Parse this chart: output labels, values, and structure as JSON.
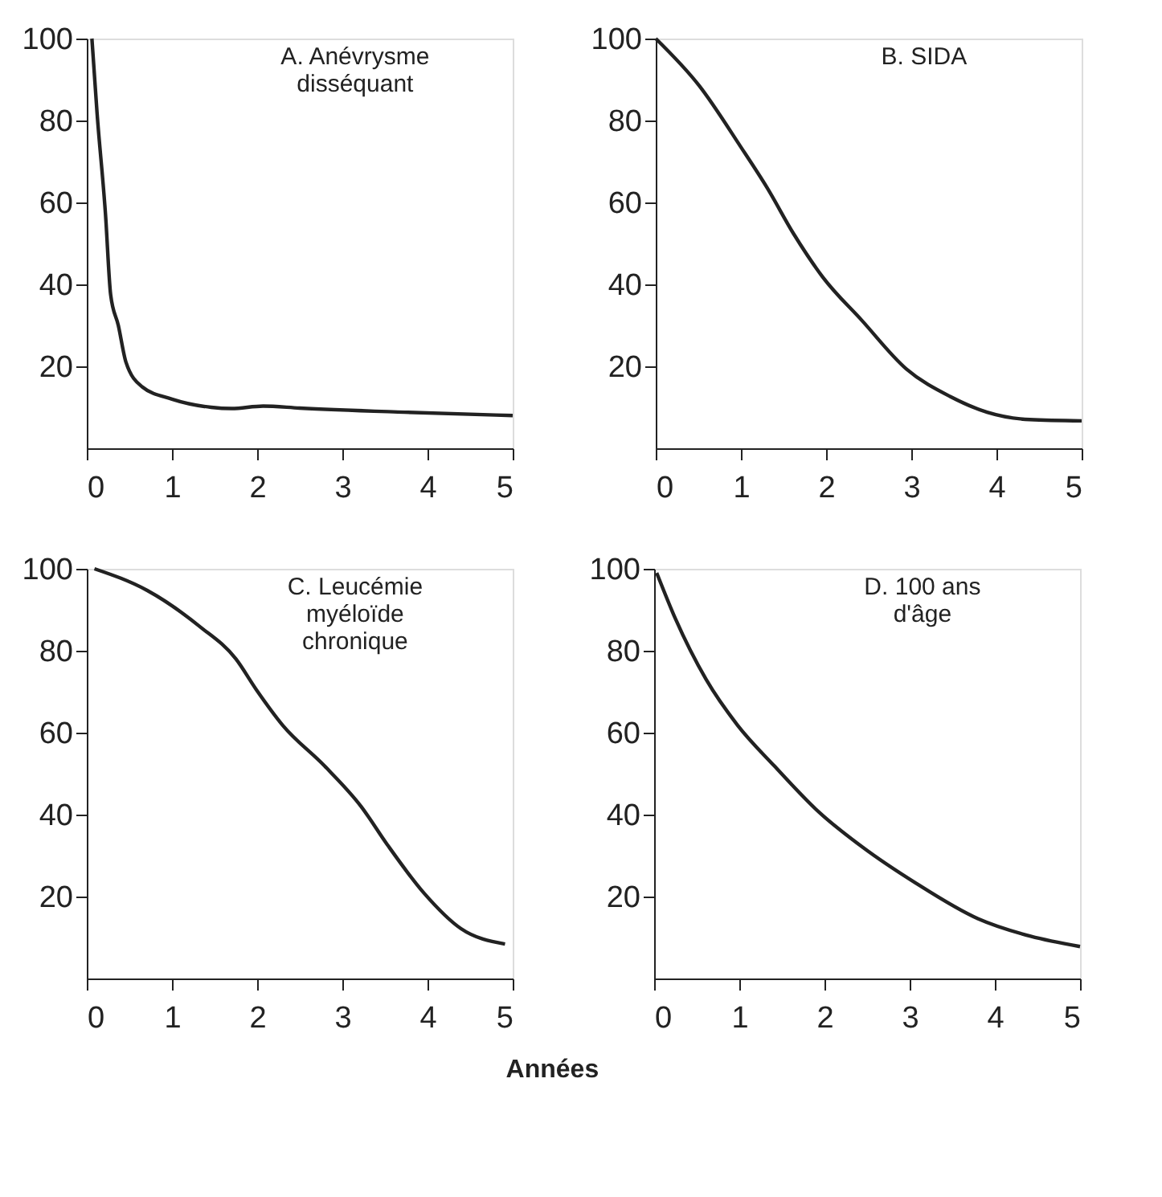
{
  "chart_data": [
    {
      "type": "line",
      "title": "A. Anévrysme disséquant",
      "x": [
        0.06,
        0.12,
        0.22,
        0.28,
        0.37,
        0.46,
        0.65,
        1.0,
        1.46,
        1.7,
        2.07,
        2.5,
        3.73,
        5.0
      ],
      "values": [
        100,
        82,
        57,
        37.5,
        30,
        21,
        15,
        12,
        10,
        9.7,
        10.3,
        9.8,
        8.8,
        8
      ],
      "color": "#222222",
      "xlim": [
        0,
        5
      ],
      "xticks": [
        0,
        1,
        2,
        3,
        4,
        5
      ],
      "ylim": [
        0,
        100
      ],
      "yticks": [
        20,
        40,
        60,
        80,
        100
      ],
      "grid": false
    },
    {
      "type": "line",
      "title": "B. SIDA",
      "x": [
        0,
        0.51,
        1.0,
        1.31,
        1.62,
        1.96,
        2.42,
        2.94,
        3.46,
        3.89,
        4.39,
        5.0
      ],
      "values": [
        100,
        88.5,
        73.5,
        63.5,
        52.3,
        41.8,
        31.2,
        19.4,
        12.6,
        8.8,
        7,
        6.7
      ],
      "color": "#222222",
      "xlim": [
        0,
        5
      ],
      "xticks": [
        0,
        1,
        2,
        3,
        4,
        5
      ],
      "ylim": [
        0,
        100
      ],
      "yticks": [
        20,
        40,
        60,
        80,
        100
      ],
      "grid": false
    },
    {
      "type": "line",
      "title": "C. Leucémie myéloïde chronique",
      "xlabel": "Années",
      "x": [
        0.09,
        0.71,
        1.32,
        1.75,
        1.99,
        2.3,
        2.79,
        3.22,
        3.53,
        3.96,
        4.39,
        4.91
      ],
      "values": [
        100,
        94.7,
        86,
        78,
        70.5,
        61.8,
        51.9,
        42,
        32.6,
        20.8,
        12.2,
        8.4
      ],
      "color": "#222222",
      "xlim": [
        0,
        5
      ],
      "xticks": [
        0,
        1,
        2,
        3,
        4,
        5
      ],
      "ylim": [
        0,
        100
      ],
      "yticks": [
        20,
        40,
        60,
        80,
        100
      ],
      "grid": false
    },
    {
      "type": "line",
      "title": "D. 100 ans d'âge",
      "x": [
        0.03,
        0.25,
        0.61,
        0.98,
        1.41,
        1.93,
        2.45,
        3.07,
        3.8,
        4.42,
        5.0
      ],
      "values": [
        99,
        87.8,
        73,
        61.8,
        51.9,
        40.7,
        32,
        23.3,
        14.6,
        10.3,
        7.8
      ],
      "color": "#222222",
      "xlim": [
        0,
        5
      ],
      "xticks": [
        0,
        1,
        2,
        3,
        4,
        5
      ],
      "ylim": [
        0,
        100
      ],
      "yticks": [
        20,
        40,
        60,
        80,
        100
      ],
      "grid": false
    }
  ]
}
